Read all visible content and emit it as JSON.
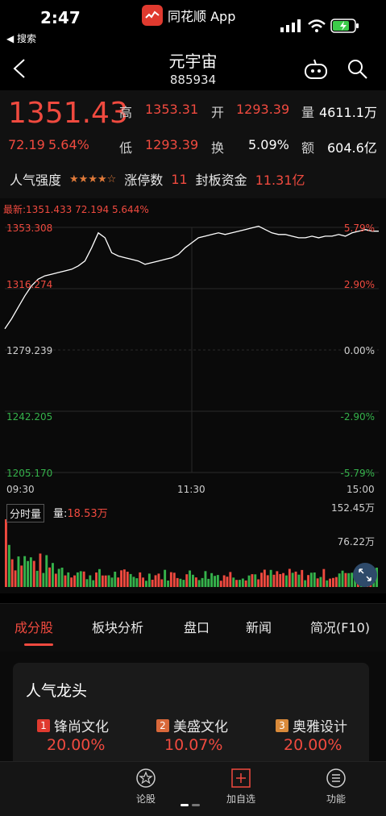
{
  "status_bar": {
    "time": "2:47",
    "back_app": "◀ 搜索",
    "app_name": "同花顺 App"
  },
  "nav": {
    "title": "元宇宙",
    "code": "885934"
  },
  "quote": {
    "price": "1351.43",
    "change_abs": "72.19",
    "change_pct": "5.64%",
    "high_label": "高",
    "high": "1353.31",
    "open_label": "开",
    "open": "1293.39",
    "volume_label": "量",
    "volume": "4611.1万",
    "low_label": "低",
    "low": "1293.39",
    "turnover_label": "换",
    "turnover": "5.09%",
    "amount_label": "额",
    "amount": "604.6亿"
  },
  "popularity": {
    "label": "人气强度",
    "stars": "★★★★☆",
    "limit_up_label": "涨停数",
    "limit_up_count": "11",
    "seal_fund_label": "封板资金",
    "seal_fund": "11.31亿"
  },
  "chart": {
    "info_prefix": "最新:",
    "info_latest": "1351.433",
    "info_change": "72.194",
    "info_pct": "5.644%",
    "y_left": [
      "1353.308",
      "1316.274",
      "1279.239",
      "1242.205",
      "1205.170"
    ],
    "y_right": [
      "5.79%",
      "2.90%",
      "0.00%",
      "-2.90%",
      "-5.79%"
    ],
    "times": [
      "09:30",
      "11:30",
      "15:00"
    ],
    "volume_tab": "分时量",
    "volume_label_prefix": "量:",
    "volume_value": "18.53万",
    "vol_max": "152.45万",
    "vol_mid": "76.22万",
    "colors": {
      "up": "#f04a3f",
      "down": "#35b24b",
      "line": "#ffffff"
    }
  },
  "chart_data": {
    "type": "line",
    "title": "",
    "xlabel": "",
    "ylabel": "",
    "x_ticks": [
      "09:30",
      "11:30",
      "15:00"
    ],
    "ylim": [
      1205.17,
      1353.308
    ],
    "prev_close": 1279.239,
    "series": [
      {
        "values": [
          1292,
          1298,
          1305,
          1312,
          1318,
          1322,
          1324,
          1325,
          1326,
          1327,
          1328,
          1330,
          1333,
          1341,
          1350,
          1347,
          1338,
          1336,
          1335,
          1334,
          1333,
          1331,
          1332,
          1333,
          1334,
          1335,
          1337,
          1341,
          1344,
          1347,
          1348,
          1349,
          1350,
          1349,
          1350,
          1351,
          1352,
          1353,
          1354,
          1352,
          1350,
          1349,
          1349,
          1348,
          1347,
          1347,
          1348,
          1347,
          1348,
          1348,
          1349,
          1348,
          1350,
          1351,
          1352,
          1351,
          1351
        ]
      }
    ],
    "volume_max": "152.45万",
    "volume_mid": "76.22万"
  },
  "tabs": [
    "成分股",
    "板块分析",
    "盘口",
    "新闻",
    "简况(F10)"
  ],
  "leaders": {
    "title": "人气龙头",
    "items": [
      {
        "rank": "1",
        "name": "锋尚文化",
        "pct": "20.00%",
        "color": "#e03a2f"
      },
      {
        "rank": "2",
        "name": "美盛文化",
        "pct": "10.07%",
        "color": "#d9683a"
      },
      {
        "rank": "3",
        "name": "奥雅设计",
        "pct": "20.00%",
        "color": "#d98a3a"
      }
    ]
  },
  "bottom_bar": {
    "comment": "论股",
    "add_watch": "加自选",
    "functions": "功能"
  }
}
